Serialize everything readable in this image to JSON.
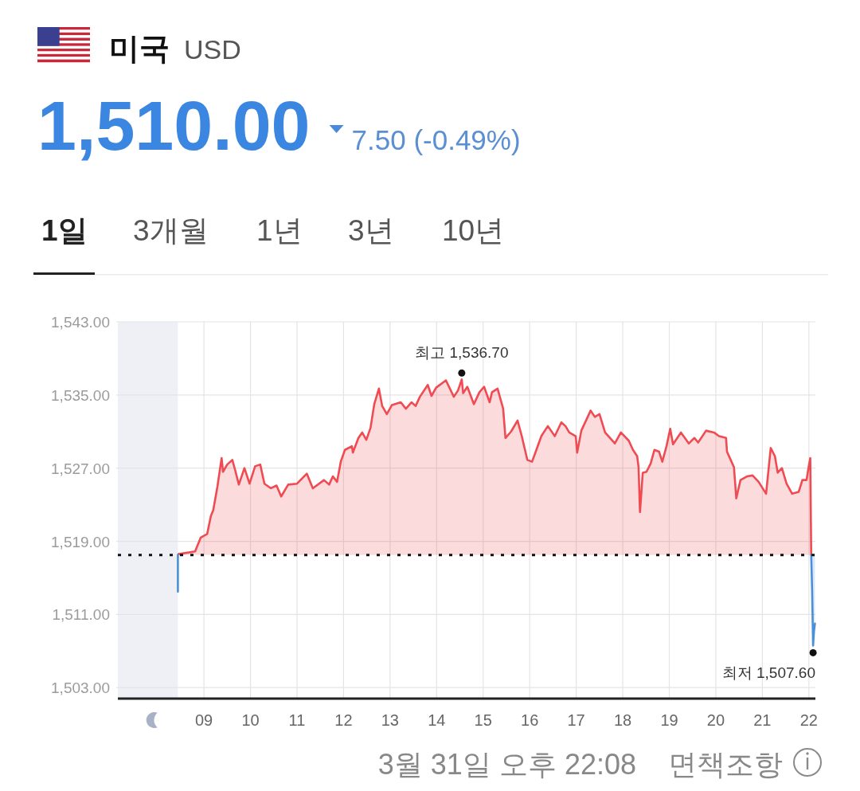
{
  "chart_data": {
    "type": "area",
    "title": "미국",
    "subtitle": "USD",
    "annotations": [
      "1,510.00",
      "7.50 (-0.49%)",
      "1일",
      "3개월",
      "1년",
      "3년",
      "10년",
      {
        "text": "최고 1,536.70",
        "x": 14.54,
        "y": 1536.7
      },
      {
        "text": "최저 1,507.60",
        "x": 22.09,
        "y": 1507.6
      },
      "3월 31일 오후 22:08",
      "면책조항"
    ],
    "series": [
      {
        "color": "#f04a52",
        "x": [
          8.45,
          8.81,
          8.93,
          9.07,
          9.15,
          9.2,
          9.29,
          9.38,
          9.41,
          9.5,
          9.61,
          9.67,
          9.75,
          9.87,
          9.98,
          10.1,
          10.21,
          10.3,
          10.44,
          10.56,
          10.66,
          10.81,
          11.0,
          11.21,
          11.34,
          11.58,
          11.69,
          11.77,
          11.86,
          11.94,
          12.03,
          12.18,
          12.2,
          12.32,
          12.4,
          12.49,
          12.58,
          12.66,
          12.76,
          12.83,
          12.93,
          13.04,
          13.23,
          13.34,
          13.46,
          13.55,
          13.64,
          13.81,
          13.89,
          13.99,
          14.2,
          14.37,
          14.46,
          14.54,
          14.57,
          14.66,
          14.8,
          14.92,
          15.02,
          15.14,
          15.19,
          15.31,
          15.43,
          15.48,
          15.6,
          15.74,
          15.83,
          15.95,
          16.05,
          16.13,
          16.25,
          16.39,
          16.54,
          16.68,
          16.77,
          16.85,
          16.99,
          17.02,
          17.11,
          17.31,
          17.4,
          17.5,
          17.62,
          17.83,
          17.96,
          18.13,
          18.22,
          18.31,
          18.34,
          18.37,
          18.43,
          18.51,
          18.6,
          18.68,
          18.78,
          18.85,
          18.94,
          19.02,
          19.08,
          19.25,
          19.42,
          19.54,
          19.62,
          19.79,
          19.96,
          20.07,
          20.22,
          20.24,
          20.32,
          20.39,
          20.44,
          20.53,
          20.67,
          20.79,
          20.92,
          21.08,
          21.18,
          21.27,
          21.33,
          21.42,
          21.52,
          21.64,
          21.78,
          21.86,
          21.95,
          21.99,
          22.03,
          22.04,
          22.05
        ],
        "values": [
          1517.6,
          1517.9,
          1519.4,
          1519.8,
          1521.8,
          1522.4,
          1525.0,
          1528.1,
          1526.6,
          1527.4,
          1527.9,
          1526.8,
          1525.2,
          1527.0,
          1525.3,
          1527.2,
          1527.4,
          1525.3,
          1524.8,
          1525.1,
          1523.9,
          1525.2,
          1525.3,
          1526.4,
          1524.8,
          1525.7,
          1525.2,
          1526.1,
          1525.5,
          1527.7,
          1529.0,
          1529.4,
          1528.7,
          1530.3,
          1530.9,
          1530.1,
          1531.4,
          1534.0,
          1535.7,
          1533.8,
          1532.9,
          1533.9,
          1534.2,
          1533.5,
          1534.2,
          1533.8,
          1534.8,
          1536.1,
          1534.9,
          1535.8,
          1536.6,
          1534.8,
          1535.5,
          1536.7,
          1535.2,
          1535.9,
          1534.0,
          1535.3,
          1535.9,
          1534.2,
          1535.3,
          1535.7,
          1533.5,
          1530.3,
          1531.0,
          1532.2,
          1530.5,
          1527.9,
          1527.7,
          1528.8,
          1530.5,
          1531.6,
          1530.5,
          1532.0,
          1531.6,
          1530.9,
          1530.5,
          1528.7,
          1531.1,
          1533.3,
          1532.6,
          1532.9,
          1530.9,
          1529.7,
          1530.9,
          1530.0,
          1529.0,
          1528.3,
          1527.1,
          1522.2,
          1526.5,
          1526.6,
          1527.5,
          1529.0,
          1528.8,
          1527.7,
          1529.4,
          1531.3,
          1529.6,
          1530.9,
          1529.7,
          1530.3,
          1529.8,
          1531.1,
          1530.9,
          1530.5,
          1530.3,
          1528.8,
          1527.9,
          1527.1,
          1523.7,
          1525.7,
          1526.1,
          1526.2,
          1525.5,
          1524.2,
          1529.2,
          1528.3,
          1526.5,
          1527.0,
          1525.3,
          1524.2,
          1524.4,
          1525.7,
          1525.7,
          1527.0,
          1528.1,
          1522.7,
          1517.5
        ]
      },
      {
        "type": "line",
        "color": "#4a90d9",
        "x": [
          8.44,
          8.44
        ],
        "values": [
          1517.5,
          1513.5
        ]
      },
      {
        "color": "#4a90d9",
        "x": [
          22.05,
          22.07,
          22.09,
          22.11,
          22.13
        ],
        "values": [
          1517.5,
          1513.5,
          1507.6,
          1509.2,
          1510.0
        ]
      }
    ],
    "xlim": [
      7.15,
      22.14
    ],
    "ylim": [
      1501.8,
      1543
    ],
    "xticks": [
      {
        "value": 9,
        "label": "09"
      },
      10,
      11,
      12,
      13,
      14,
      15,
      16,
      17,
      18,
      19,
      20,
      21,
      22
    ],
    "yticks": [
      {
        "value": 1503,
        "label": "1,503.00"
      },
      {
        "value": 1511,
        "label": "1,511.00"
      },
      {
        "value": 1519,
        "label": "1,519.00"
      },
      {
        "value": 1527,
        "label": "1,527.00"
      },
      {
        "value": 1535,
        "label": "1,535.00"
      },
      {
        "value": 1543,
        "label": "1,543.00"
      }
    ],
    "grid": true,
    "bands": [
      {
        "axis": "x",
        "from": 7.15,
        "to": 8.44,
        "color": "#eef0f5"
      }
    ],
    "ref_lines": [
      {
        "axis": "y",
        "value": 1517.5,
        "color": "#111111",
        "line_style": "dotted"
      }
    ]
  }
}
